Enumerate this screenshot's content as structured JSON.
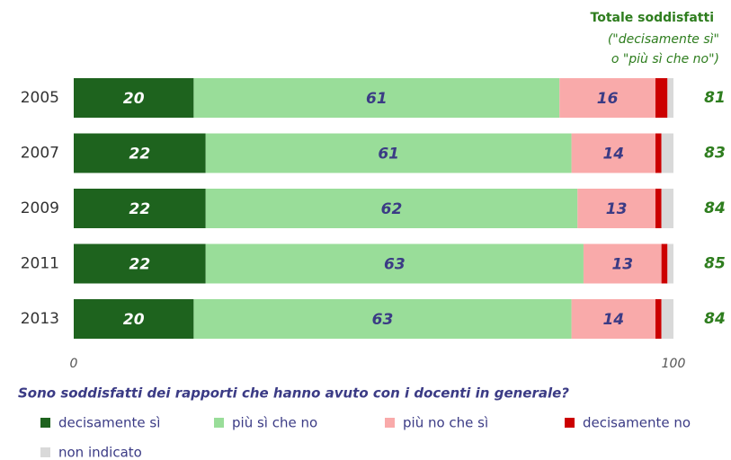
{
  "chart_data": {
    "type": "stacked-bar-horizontal",
    "categories": [
      "2005",
      "2007",
      "2009",
      "2011",
      "2013"
    ],
    "series": [
      {
        "name": "decisamente sì",
        "color": "#1e631e",
        "label_color": "#ffffff",
        "labels": true,
        "values": [
          20,
          22,
          22,
          22,
          20
        ]
      },
      {
        "name": "più sì che no",
        "color": "#99dd99",
        "label_color": "#3b3b85",
        "labels": true,
        "values": [
          61,
          61,
          62,
          63,
          63
        ]
      },
      {
        "name": "più no che sì",
        "color": "#f9aaaa",
        "label_color": "#3b3b85",
        "labels": true,
        "values": [
          16,
          14,
          13,
          13,
          14
        ]
      },
      {
        "name": "decisamente no",
        "color": "#cc0000",
        "label_color": "#3b3b85",
        "labels": false,
        "values": [
          2,
          1,
          1,
          1,
          1
        ]
      },
      {
        "name": "non indicato",
        "color": "#d9d9d9",
        "label_color": "#3b3b85",
        "labels": false,
        "values": [
          1,
          2,
          2,
          1,
          2
        ]
      }
    ],
    "xlim": [
      0,
      100
    ],
    "xticks": [
      0,
      100
    ],
    "xlabel": "Sono soddisfatti dei rapporti che hanno avuto con i docenti in generale?",
    "totals": {
      "title": "Totale soddisfatti",
      "subtitle": [
        "(\"decisamente sì\"",
        "o \"più sì che no\")"
      ],
      "color": "#2e7d1e",
      "values": [
        81,
        83,
        84,
        85,
        84
      ]
    },
    "legend": "bottom"
  }
}
